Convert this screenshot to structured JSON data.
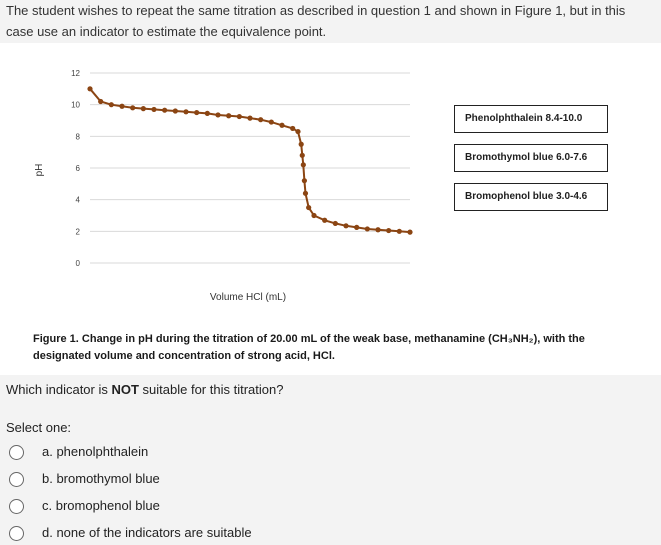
{
  "question_intro": "The student wishes to repeat the same titration as described in question 1 and shown in Figure 1, but in this case use an indicator to estimate the equivalence point.",
  "figure": {
    "caption_label": "Figure 1.",
    "caption_text": "Change in pH during the titration of 20.00 mL of the weak base, methanamine (CH₃NH₂), with the designated volume and concentration of strong acid, HCl.",
    "legend_boxes": [
      "Phenolphthalein 8.4-10.0",
      "Bromothymol blue 6.0-7.6",
      "Bromophenol blue 3.0-4.6"
    ]
  },
  "chart_data": {
    "type": "line",
    "title": "",
    "xlabel": "Volume HCl (mL)",
    "ylabel": "pH",
    "ylim": [
      0,
      12
    ],
    "yticks": [
      0,
      2,
      4,
      6,
      8,
      10,
      12
    ],
    "xticks_shown": false,
    "grid": "horizontal",
    "series": [
      {
        "color": "#8B4513",
        "marker": "circle",
        "x": [
          0,
          1,
          2,
          3,
          4,
          5,
          6,
          7,
          8,
          9,
          10,
          11,
          12,
          13,
          14,
          15,
          16,
          17,
          18,
          19,
          19.5,
          19.8,
          19.9,
          20,
          20.1,
          20.2,
          20.5,
          21,
          22,
          23,
          24,
          25,
          26,
          27,
          28,
          29,
          30
        ],
        "y": [
          11.0,
          10.2,
          10.0,
          9.9,
          9.8,
          9.75,
          9.7,
          9.65,
          9.6,
          9.55,
          9.5,
          9.45,
          9.35,
          9.3,
          9.25,
          9.15,
          9.05,
          8.9,
          8.7,
          8.5,
          8.3,
          7.5,
          6.8,
          6.2,
          5.2,
          4.4,
          3.5,
          3.0,
          2.7,
          2.5,
          2.35,
          2.25,
          2.15,
          2.1,
          2.05,
          2.0,
          1.95
        ]
      }
    ]
  },
  "question": {
    "prefix": "Which indicator is ",
    "emphasis": "NOT",
    "suffix": " suitable for this titration?"
  },
  "select_label": "Select one:",
  "options": [
    "a. phenolphthalein",
    "b. bromothymol blue",
    "c. bromophenol blue",
    "d. none of the indicators are suitable"
  ]
}
